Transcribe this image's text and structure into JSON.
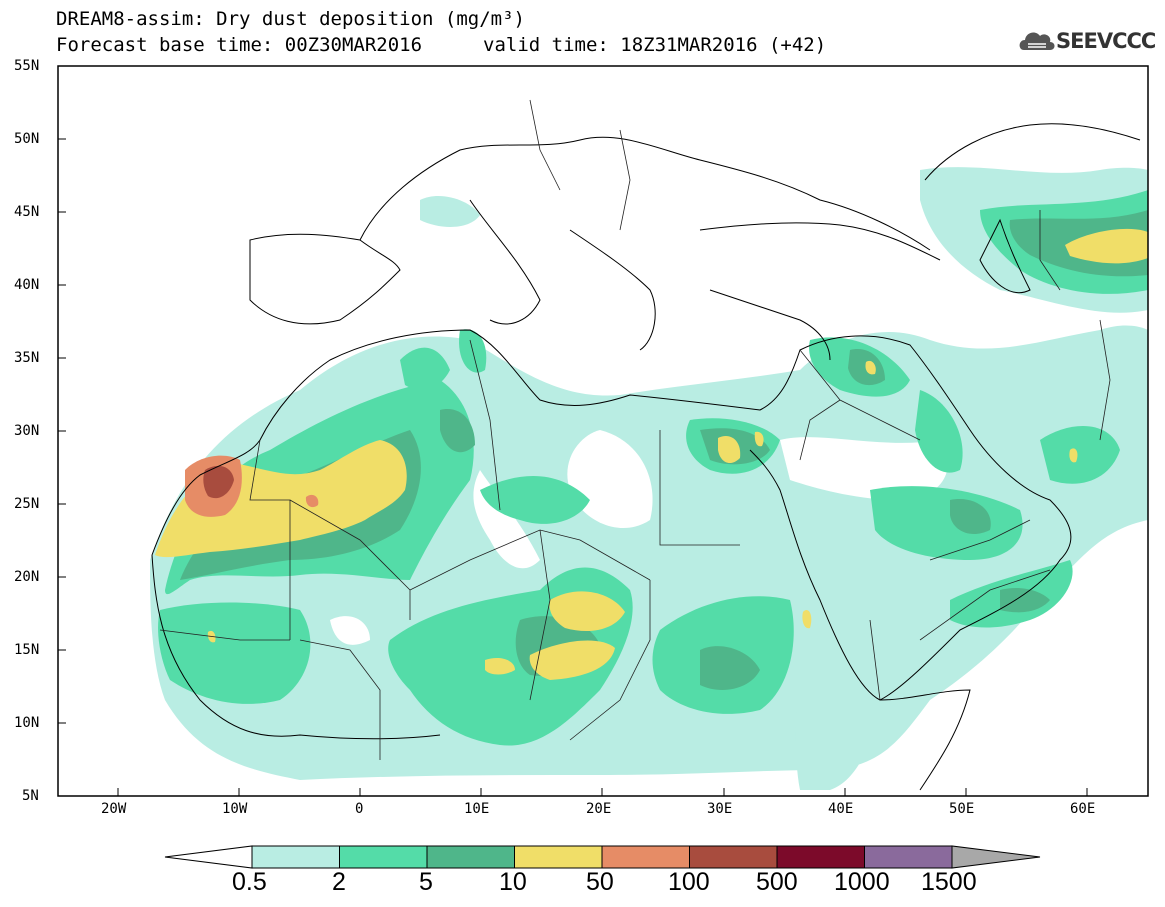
{
  "header": {
    "title_line1": "DREAM8-assim: Dry dust deposition (mg/m³)",
    "title_line2": "Forecast base time: 00Z30MAR2016",
    "valid_time": "valid time: 18Z31MAR2016 (+42)",
    "logo_text": "SEEVCCC"
  },
  "axes": {
    "lat_labels": [
      "55N",
      "50N",
      "45N",
      "40N",
      "35N",
      "30N",
      "25N",
      "20N",
      "15N",
      "10N",
      "5N"
    ],
    "lon_labels": [
      "20W",
      "10W",
      "0",
      "10E",
      "20E",
      "30E",
      "40E",
      "50E",
      "60E"
    ]
  },
  "colorbar": {
    "labels": [
      "0.5",
      "2",
      "5",
      "10",
      "50",
      "100",
      "500",
      "1000",
      "1500"
    ],
    "colors": [
      "#b9ede3",
      "#54dca8",
      "#4fb68a",
      "#f0de68",
      "#e68c66",
      "#a84c3e",
      "#7c0a2a",
      "#8a6a9c"
    ],
    "under_color": "#ffffff",
    "over_color": "#a8a8a8"
  }
}
